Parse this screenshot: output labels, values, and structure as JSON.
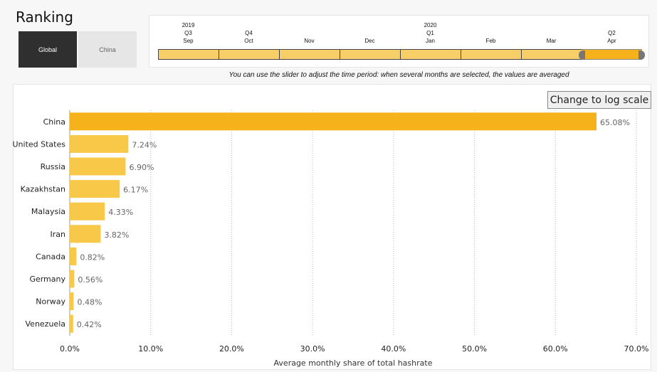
{
  "page": {
    "title": "Ranking",
    "hint": "You can use the slider to adjust the time period: when several months are selected, the values are averaged",
    "log_button_label": "Change to log scale"
  },
  "toggles": [
    {
      "label": "Global",
      "selected": true
    },
    {
      "label": "China",
      "selected": false
    }
  ],
  "slider": {
    "ticks": [
      {
        "year": "2019",
        "quarter": "Q3",
        "month": "Sep"
      },
      {
        "year": "",
        "quarter": "Q4",
        "month": "Oct"
      },
      {
        "year": "",
        "quarter": "",
        "month": "Nov"
      },
      {
        "year": "",
        "quarter": "",
        "month": "Dec"
      },
      {
        "year": "2020",
        "quarter": "Q1",
        "month": "Jan"
      },
      {
        "year": "",
        "quarter": "",
        "month": "Feb"
      },
      {
        "year": "",
        "quarter": "",
        "month": "Mar"
      },
      {
        "year": "",
        "quarter": "Q2",
        "month": "Apr"
      }
    ],
    "selected_month": "Apr",
    "colors": {
      "unselected": "#f7ce68",
      "selected": "#f5b21a",
      "handle": "#777777"
    }
  },
  "chart_data": {
    "type": "bar",
    "orientation": "horizontal",
    "categories": [
      "China",
      "United States",
      "Russia",
      "Kazakhstan",
      "Malaysia",
      "Iran",
      "Canada",
      "Germany",
      "Norway",
      "Venezuela"
    ],
    "values": [
      65.08,
      7.24,
      6.9,
      6.17,
      4.33,
      3.82,
      0.82,
      0.56,
      0.48,
      0.42
    ],
    "value_labels": [
      "65.08%",
      "7.24%",
      "6.90%",
      "6.17%",
      "4.33%",
      "3.82%",
      "0.82%",
      "0.56%",
      "0.48%",
      "0.42%"
    ],
    "xlabel": "Average monthly share of total hashrate",
    "xlim": [
      0,
      70
    ],
    "xticks": [
      0,
      10,
      20,
      30,
      40,
      50,
      60,
      70
    ],
    "xtick_labels": [
      "0.0%",
      "10.0%",
      "20.0%",
      "30.0%",
      "40.0%",
      "50.0%",
      "60.0%",
      "70.0%"
    ],
    "grid": true,
    "colors": {
      "top_bar": "#f5b21a",
      "bars": "#f8c848"
    }
  }
}
